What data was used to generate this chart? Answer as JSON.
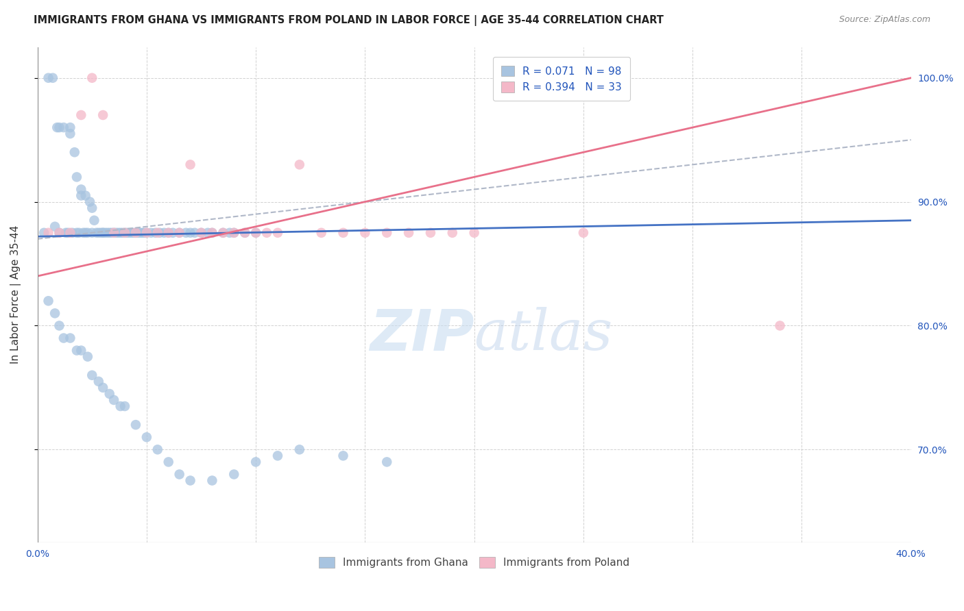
{
  "title": "IMMIGRANTS FROM GHANA VS IMMIGRANTS FROM POLAND IN LABOR FORCE | AGE 35-44 CORRELATION CHART",
  "source": "Source: ZipAtlas.com",
  "ylabel": "In Labor Force | Age 35-44",
  "xlim": [
    0.0,
    0.4
  ],
  "ylim": [
    0.625,
    1.025
  ],
  "ghana_color": "#a8c4e0",
  "poland_color": "#f4b8c8",
  "ghana_R": 0.071,
  "ghana_N": 98,
  "poland_R": 0.394,
  "poland_N": 33,
  "legend_R_color": "#2255bb",
  "trendline_ghana_color": "#4472c4",
  "trendline_poland_color": "#e8708a",
  "trendline_dashed_color": "#b0b8c8",
  "watermark_zip": "ZIP",
  "watermark_atlas": "atlas",
  "ghana_x": [
    0.003,
    0.005,
    0.007,
    0.008,
    0.009,
    0.01,
    0.01,
    0.012,
    0.013,
    0.014,
    0.015,
    0.015,
    0.016,
    0.017,
    0.018,
    0.018,
    0.019,
    0.02,
    0.02,
    0.021,
    0.022,
    0.022,
    0.023,
    0.024,
    0.025,
    0.025,
    0.026,
    0.027,
    0.028,
    0.029,
    0.03,
    0.03,
    0.031,
    0.032,
    0.033,
    0.034,
    0.035,
    0.036,
    0.037,
    0.038,
    0.039,
    0.04,
    0.041,
    0.042,
    0.043,
    0.044,
    0.045,
    0.046,
    0.047,
    0.048,
    0.049,
    0.05,
    0.052,
    0.054,
    0.056,
    0.058,
    0.06,
    0.062,
    0.065,
    0.068,
    0.07,
    0.072,
    0.075,
    0.078,
    0.08,
    0.085,
    0.088,
    0.09,
    0.095,
    0.1,
    0.005,
    0.008,
    0.01,
    0.012,
    0.015,
    0.018,
    0.02,
    0.023,
    0.025,
    0.028,
    0.03,
    0.033,
    0.035,
    0.038,
    0.04,
    0.045,
    0.05,
    0.055,
    0.06,
    0.065,
    0.07,
    0.08,
    0.09,
    0.1,
    0.11,
    0.12,
    0.14,
    0.16
  ],
  "ghana_y": [
    0.875,
    1.0,
    1.0,
    0.88,
    0.96,
    0.96,
    0.875,
    0.96,
    0.875,
    0.875,
    0.955,
    0.96,
    0.875,
    0.94,
    0.92,
    0.875,
    0.875,
    0.91,
    0.905,
    0.875,
    0.905,
    0.875,
    0.875,
    0.9,
    0.895,
    0.875,
    0.885,
    0.875,
    0.875,
    0.875,
    0.875,
    0.875,
    0.875,
    0.875,
    0.875,
    0.875,
    0.875,
    0.875,
    0.875,
    0.875,
    0.875,
    0.875,
    0.875,
    0.875,
    0.875,
    0.875,
    0.875,
    0.875,
    0.875,
    0.875,
    0.875,
    0.875,
    0.875,
    0.875,
    0.875,
    0.875,
    0.875,
    0.875,
    0.875,
    0.875,
    0.875,
    0.875,
    0.875,
    0.875,
    0.875,
    0.875,
    0.875,
    0.875,
    0.875,
    0.875,
    0.82,
    0.81,
    0.8,
    0.79,
    0.79,
    0.78,
    0.78,
    0.775,
    0.76,
    0.755,
    0.75,
    0.745,
    0.74,
    0.735,
    0.735,
    0.72,
    0.71,
    0.7,
    0.69,
    0.68,
    0.675,
    0.675,
    0.68,
    0.69,
    0.695,
    0.7,
    0.695,
    0.69
  ],
  "poland_x": [
    0.005,
    0.01,
    0.015,
    0.02,
    0.025,
    0.03,
    0.035,
    0.04,
    0.045,
    0.05,
    0.055,
    0.06,
    0.065,
    0.07,
    0.075,
    0.08,
    0.085,
    0.09,
    0.095,
    0.1,
    0.105,
    0.11,
    0.12,
    0.13,
    0.14,
    0.15,
    0.16,
    0.17,
    0.18,
    0.19,
    0.2,
    0.25,
    0.34
  ],
  "poland_y": [
    0.875,
    0.875,
    0.875,
    0.97,
    1.0,
    0.97,
    0.875,
    0.875,
    0.875,
    0.875,
    0.875,
    0.875,
    0.875,
    0.93,
    0.875,
    0.875,
    0.875,
    0.875,
    0.875,
    0.875,
    0.875,
    0.875,
    0.93,
    0.875,
    0.875,
    0.875,
    0.875,
    0.875,
    0.875,
    0.875,
    0.875,
    0.875,
    0.8
  ]
}
